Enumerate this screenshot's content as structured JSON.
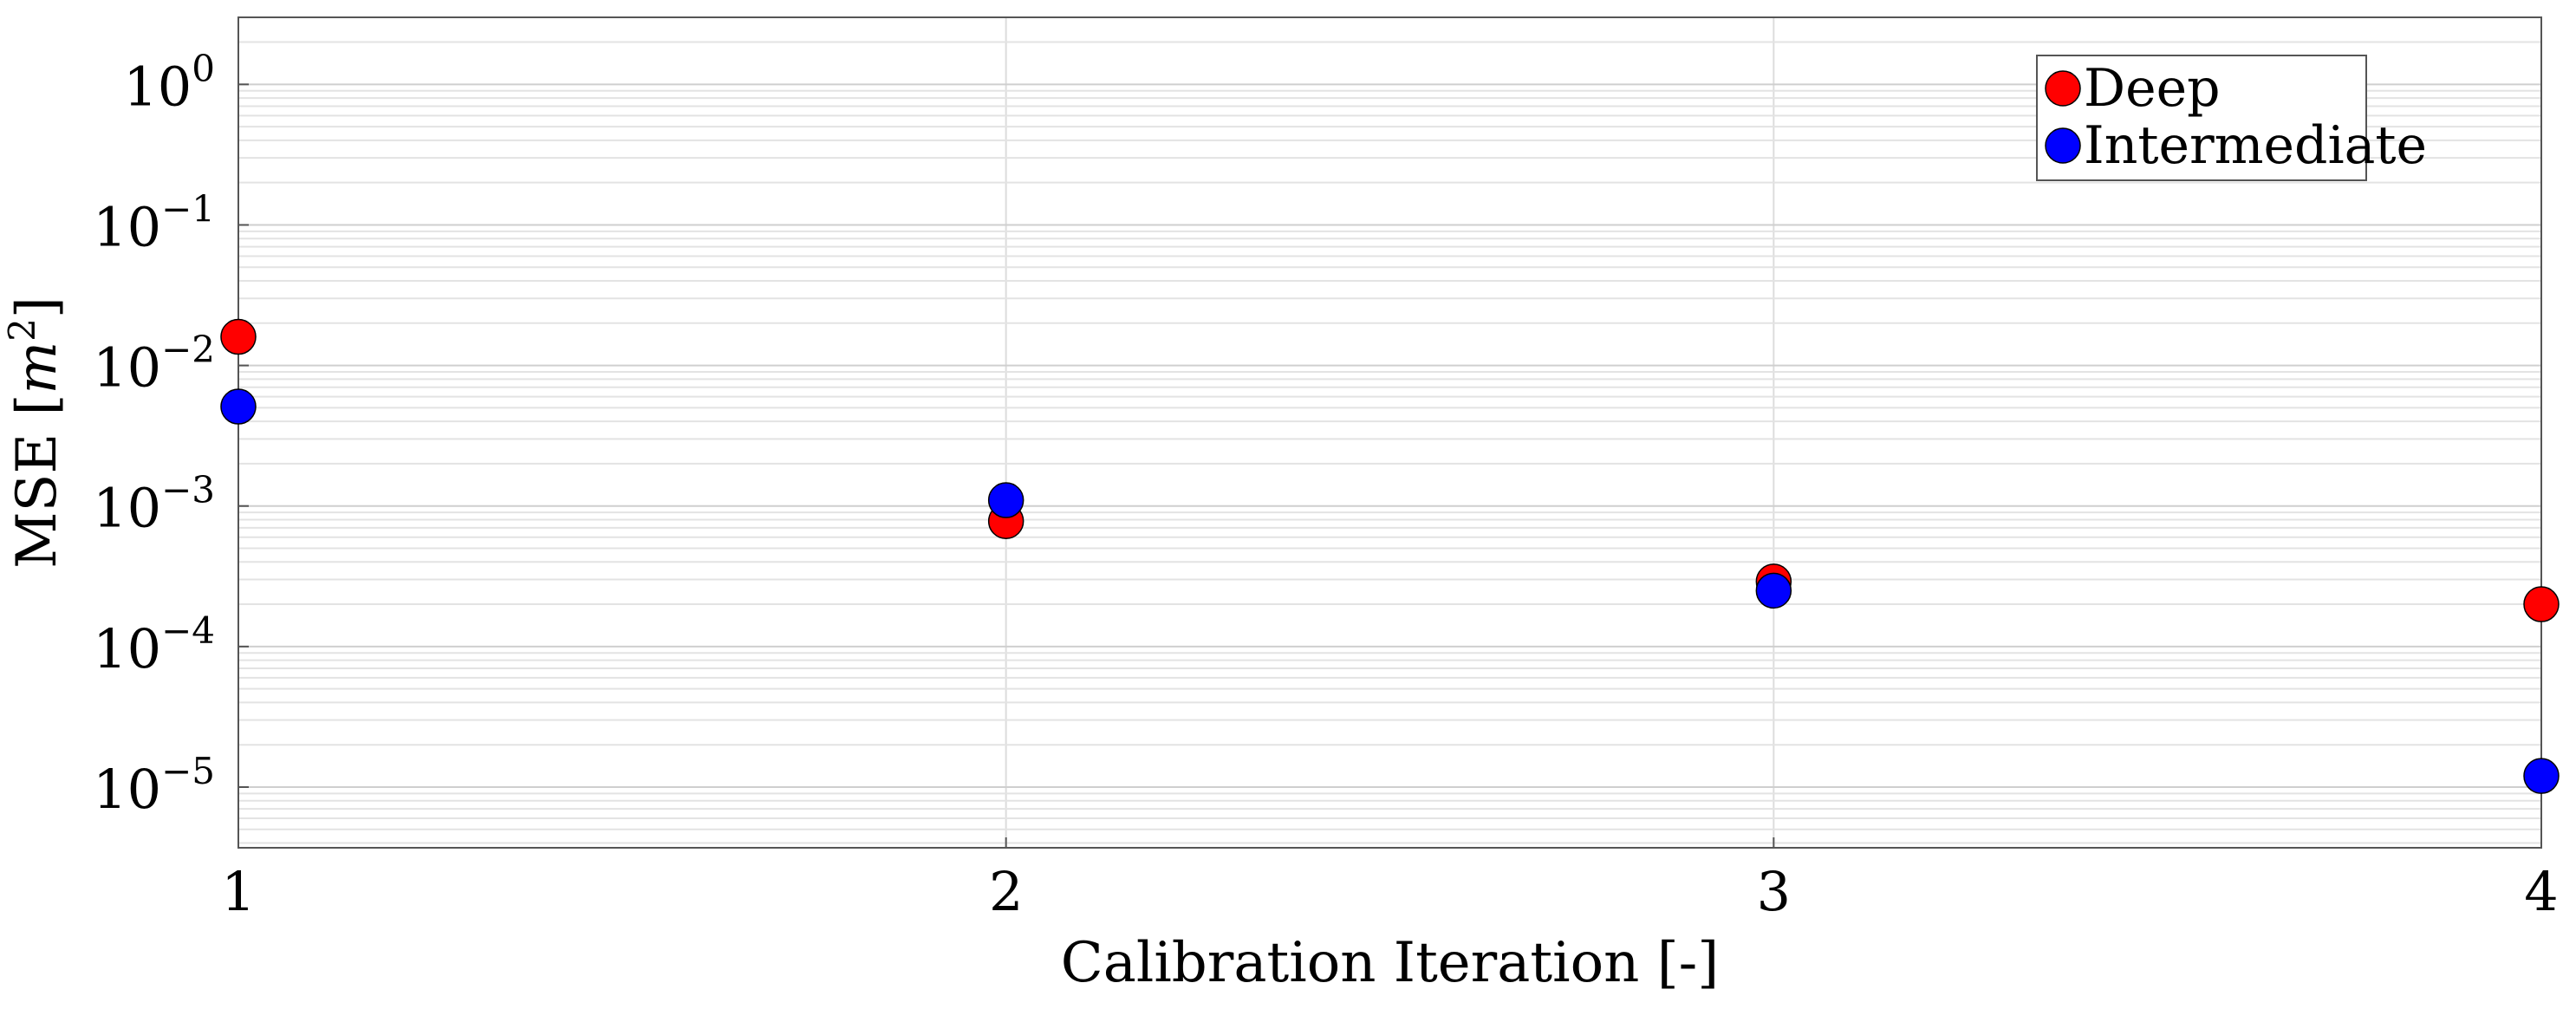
{
  "chart_data": {
    "type": "scatter",
    "title": "",
    "xlabel": "Calibration Iteration [-]",
    "ylabel": {
      "prefix": "MSE [",
      "var": "m",
      "sup": "2",
      "suffix": "]"
    },
    "x_ticks": [
      "1",
      "2",
      "3",
      "4"
    ],
    "xlim": [
      1,
      4
    ],
    "y_scale": "log",
    "ylim": [
      3.7e-06,
      3
    ],
    "y_ticks": [
      {
        "value": 1,
        "base": "10",
        "exp": "0"
      },
      {
        "value": 0.1,
        "base": "10",
        "exp": "−1"
      },
      {
        "value": 0.01,
        "base": "10",
        "exp": "−2"
      },
      {
        "value": 0.001,
        "base": "10",
        "exp": "−3"
      },
      {
        "value": 0.0001,
        "base": "10",
        "exp": "−4"
      },
      {
        "value": 1e-05,
        "base": "10",
        "exp": "−5"
      }
    ],
    "grid": true,
    "legend_position": "top-right",
    "series": [
      {
        "name": "Deep",
        "color": "#ff0000",
        "x": [
          1,
          2,
          3,
          4
        ],
        "y": [
          0.016,
          0.00078,
          0.00029,
          0.0002
        ]
      },
      {
        "name": "Intermediate",
        "color": "#0000ff",
        "x": [
          1,
          2,
          3,
          4
        ],
        "y": [
          0.0051,
          0.0011,
          0.00025,
          1.2e-05
        ]
      }
    ]
  }
}
